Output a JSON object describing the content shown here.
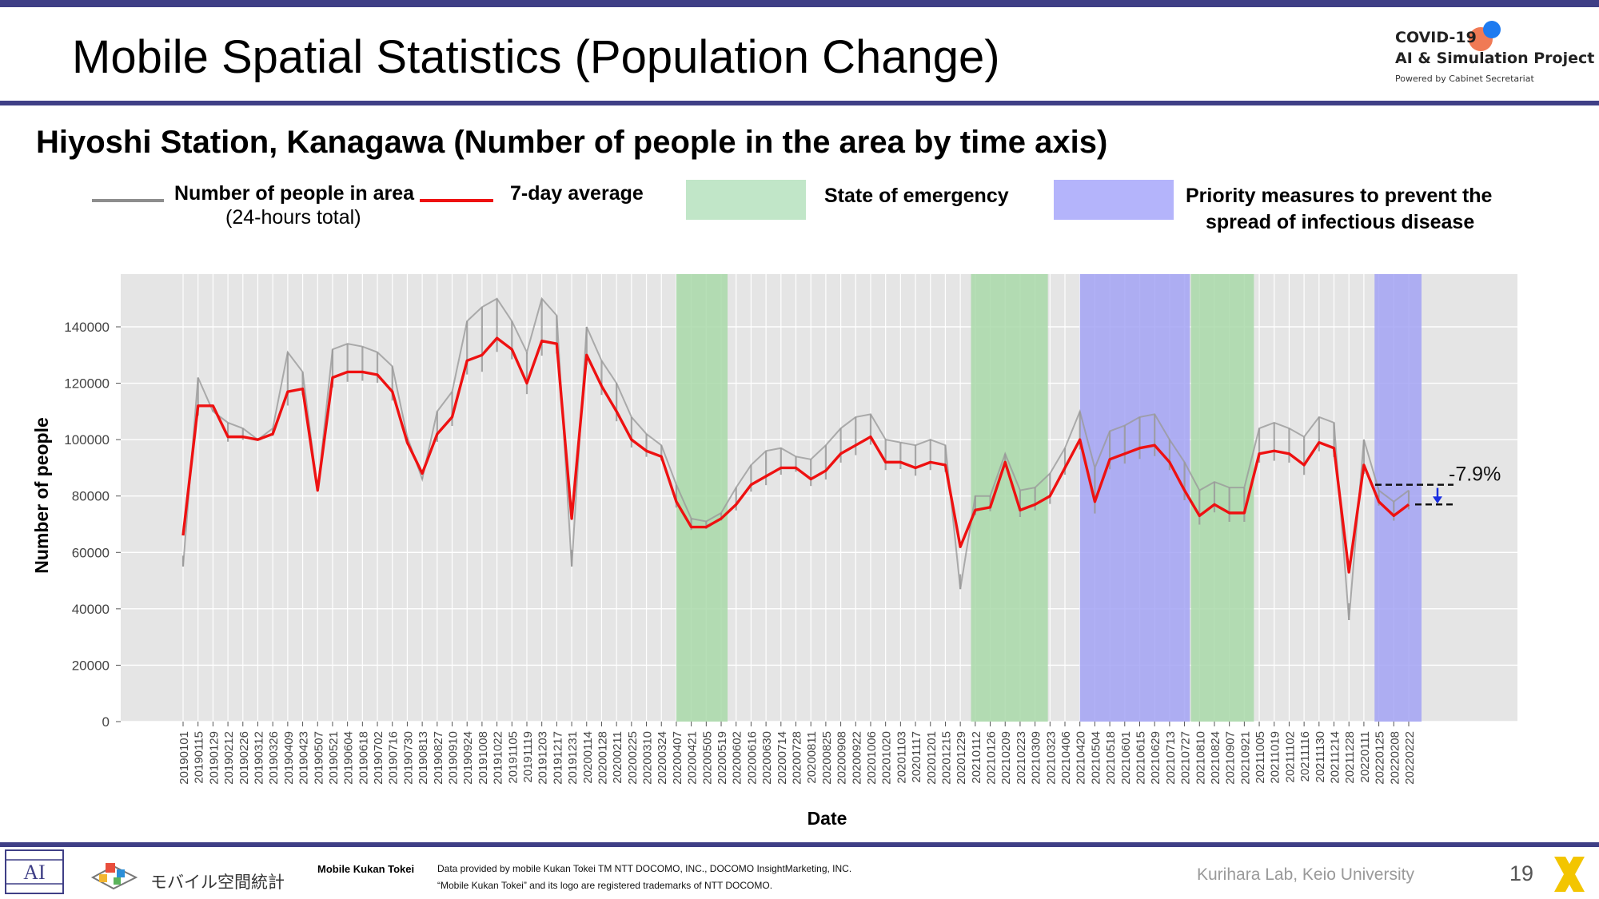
{
  "header": {
    "title": "Mobile Spatial Statistics (Population Change)",
    "logo": {
      "line1": "COVID-19",
      "line2": "AI & Simulation Project",
      "line3": "Powered by Cabinet Secretariat"
    }
  },
  "subtitle": "Hiyoshi Station, Kanagawa (Number of people in the area by time axis)",
  "legend": {
    "raw_label": "Number of people in area",
    "raw_sublabel": "(24-hours total)",
    "avg_label": "7-day average",
    "emergency_label": "State of emergency",
    "priority_label_1": "Priority measures to prevent the",
    "priority_label_2": "spread of infectious disease"
  },
  "colors": {
    "raw": "#9a9a9a",
    "avg": "#ee1111",
    "emergency": "#a9d9a9",
    "priority": "#a3a3f5",
    "plot_bg": "#e5e5e5",
    "rule": "#3f3f86"
  },
  "chart_data": {
    "type": "line",
    "xlabel": "Date",
    "ylabel": "Number of people",
    "ylim": [
      0,
      150000
    ],
    "yticks": [
      0,
      20000,
      40000,
      60000,
      80000,
      100000,
      120000,
      140000
    ],
    "grid": true,
    "categories": [
      "20190101",
      "20190115",
      "20190129",
      "20190212",
      "20190226",
      "20190312",
      "20190326",
      "20190409",
      "20190423",
      "20190507",
      "20190521",
      "20190604",
      "20190618",
      "20190702",
      "20190716",
      "20190730",
      "20190813",
      "20190827",
      "20190910",
      "20190924",
      "20191008",
      "20191022",
      "20191105",
      "20191119",
      "20191203",
      "20191217",
      "20191231",
      "20200114",
      "20200128",
      "20200211",
      "20200225",
      "20200310",
      "20200324",
      "20200407",
      "20200421",
      "20200505",
      "20200519",
      "20200602",
      "20200616",
      "20200630",
      "20200714",
      "20200728",
      "20200811",
      "20200825",
      "20200908",
      "20200922",
      "20201006",
      "20201020",
      "20201103",
      "20201117",
      "20201201",
      "20201215",
      "20201229",
      "20210112",
      "20210126",
      "20210209",
      "20210223",
      "20210309",
      "20210323",
      "20210406",
      "20210420",
      "20210504",
      "20210518",
      "20210601",
      "20210615",
      "20210629",
      "20210713",
      "20210727",
      "20210810",
      "20210824",
      "20210907",
      "20210921",
      "20211005",
      "20211019",
      "20211102",
      "20211116",
      "20211130",
      "20211214",
      "20211228",
      "20220111",
      "20220125",
      "20220208",
      "20220222"
    ],
    "series": [
      {
        "name": "7-day average",
        "values": [
          66000,
          112000,
          112000,
          101000,
          101000,
          100000,
          102000,
          117000,
          118000,
          82000,
          122000,
          124000,
          124000,
          123000,
          117000,
          99000,
          88000,
          102000,
          108000,
          128000,
          130000,
          136000,
          132000,
          120000,
          135000,
          134000,
          72000,
          130000,
          119000,
          110000,
          100000,
          96000,
          94000,
          78000,
          69000,
          69000,
          72000,
          77000,
          84000,
          87000,
          90000,
          90000,
          86000,
          89000,
          95000,
          98000,
          101000,
          92000,
          92000,
          90000,
          92000,
          91000,
          62000,
          75000,
          76000,
          92000,
          75000,
          77000,
          80000,
          90000,
          100000,
          78000,
          93000,
          95000,
          97000,
          98000,
          92000,
          82000,
          73000,
          77000,
          74000,
          74000,
          95000,
          96000,
          95000,
          91000,
          99000,
          97000,
          53000,
          91000,
          78000,
          73000,
          77000
        ]
      },
      {
        "name": "Number of people in area",
        "values": [
          55000,
          122000,
          110000,
          106000,
          104000,
          100000,
          104000,
          131000,
          124000,
          82000,
          132000,
          134000,
          133000,
          131000,
          126000,
          101000,
          86000,
          110000,
          117000,
          142000,
          147000,
          150000,
          142000,
          131000,
          150000,
          144000,
          55000,
          140000,
          128000,
          120000,
          108000,
          102000,
          98000,
          84000,
          72000,
          71000,
          74000,
          83000,
          91000,
          96000,
          97000,
          94000,
          93000,
          98000,
          104000,
          108000,
          109000,
          100000,
          99000,
          98000,
          100000,
          98000,
          47000,
          80000,
          80000,
          95000,
          82000,
          83000,
          88000,
          97000,
          110000,
          90000,
          103000,
          105000,
          108000,
          109000,
          100000,
          92000,
          82000,
          85000,
          83000,
          83000,
          104000,
          106000,
          104000,
          101000,
          108000,
          106000,
          36000,
          100000,
          82000,
          78000,
          82000
        ]
      }
    ],
    "shaded_periods": [
      {
        "type": "State of emergency",
        "start": "20200407",
        "end": "20200525"
      },
      {
        "type": "State of emergency",
        "start": "20210108",
        "end": "20210321"
      },
      {
        "type": "Priority measures to prevent the spread of infectious disease",
        "start": "20210420",
        "end": "20210801"
      },
      {
        "type": "State of emergency",
        "start": "20210802",
        "end": "20210930"
      },
      {
        "type": "Priority measures to prevent the spread of infectious disease",
        "start": "20220121",
        "end": "20220306"
      }
    ],
    "annotation": {
      "text": "-7.9%",
      "from_value": 84000,
      "to_value": 77000
    }
  },
  "footer": {
    "brand_jp": "モバイル空間統計",
    "brand_en": "Mobile Kukan Tokei",
    "note1": "Data provided by mobile Kukan Tokei TM NTT DOCOMO, INC., DOCOMO InsightMarketing, INC.",
    "note2": "“Mobile Kukan Tokei” and its logo are registered trademarks of NTT DOCOMO.",
    "lab": "Kurihara Lab, Keio University",
    "page_number": "19"
  }
}
